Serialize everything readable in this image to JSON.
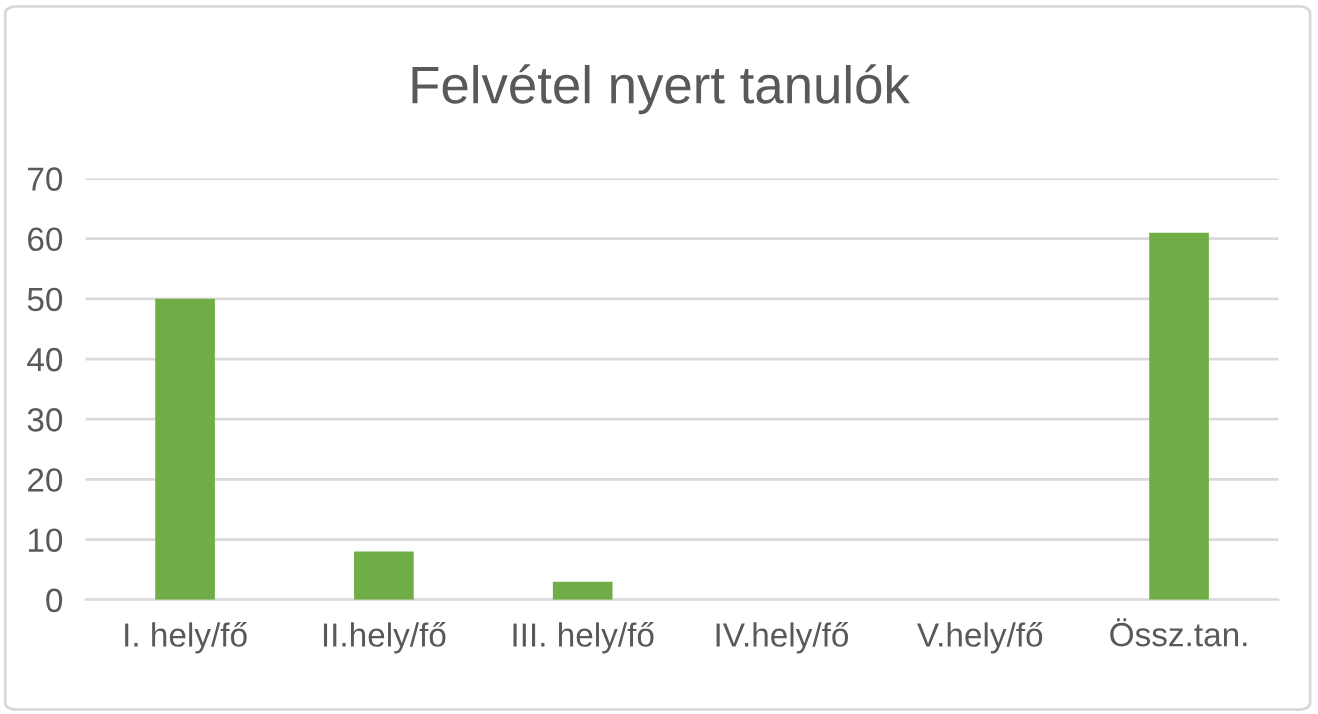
{
  "chart_data": {
    "type": "bar",
    "title": "Felvétel nyert tanulók",
    "categories": [
      "I. hely/fő",
      "II.hely/fő",
      "III. hely/fő",
      "IV.hely/fő",
      "V.hely/fő",
      "Össz.tan."
    ],
    "values": [
      50,
      8,
      3,
      0,
      0,
      61
    ],
    "color": "#70ad47",
    "ylim": [
      0,
      70
    ],
    "yticks": [
      0,
      10,
      20,
      30,
      40,
      50,
      60,
      70
    ],
    "grid": "y"
  }
}
